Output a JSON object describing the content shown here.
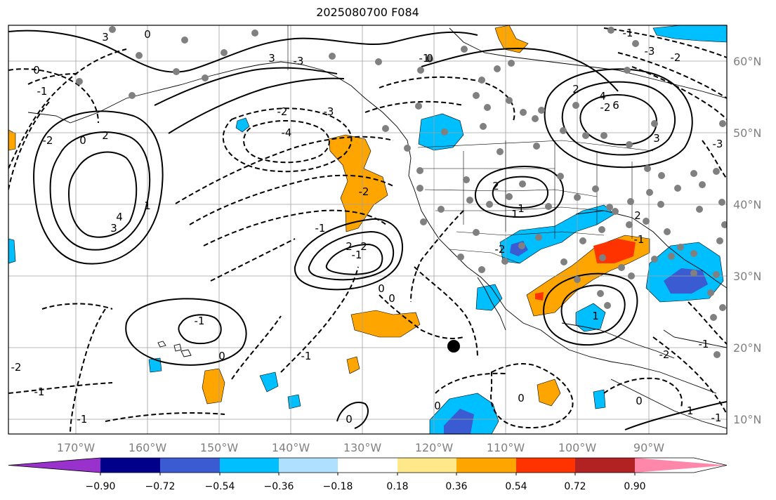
{
  "title": "2025080700 F084",
  "map": {
    "lat_labels": [
      "60°N",
      "50°N",
      "40°N",
      "30°N",
      "20°N",
      "10°N"
    ],
    "lon_labels": [
      "170°W",
      "160°W",
      "150°W",
      "140°W",
      "130°W",
      "120°W",
      "110°W",
      "100°W",
      "90°W"
    ],
    "contour_labels": [
      "3",
      "3",
      "0",
      "1",
      "-1",
      "-2",
      "2",
      "0",
      "4",
      "3",
      "-3",
      "-2",
      "-3",
      "-4",
      "-3",
      "-2",
      "0",
      "-1",
      "2",
      "-1",
      "2",
      "0",
      "-2",
      "0",
      "0",
      "-1",
      "-1",
      "2",
      "1",
      "1",
      "-2",
      "2",
      "1",
      "2",
      "4",
      "6",
      "3",
      "-3",
      "-2",
      "-1",
      "0",
      "-2",
      "-1",
      "-1",
      "-1",
      "0",
      "-1",
      "0",
      "-2",
      "-1",
      "0",
      "-1",
      "0",
      "-1"
    ],
    "colors": {
      "land_line": "#000000",
      "grid": "#a0a0a0",
      "station_dot": "#808080",
      "storm_marker": "#000000"
    }
  },
  "colorbar": {
    "ticks": [
      "−0.90",
      "−0.72",
      "−0.54",
      "−0.36",
      "−0.18",
      "0.18",
      "0.36",
      "0.54",
      "0.72",
      "0.90"
    ],
    "colors": [
      "#9932cc",
      "#00008b",
      "#3a5bd1",
      "#00bfff",
      "#b0e0ff",
      "#ffffff",
      "#ffe88a",
      "#ffa500",
      "#ff3300",
      "#b22222",
      "#ff88aa"
    ]
  }
}
